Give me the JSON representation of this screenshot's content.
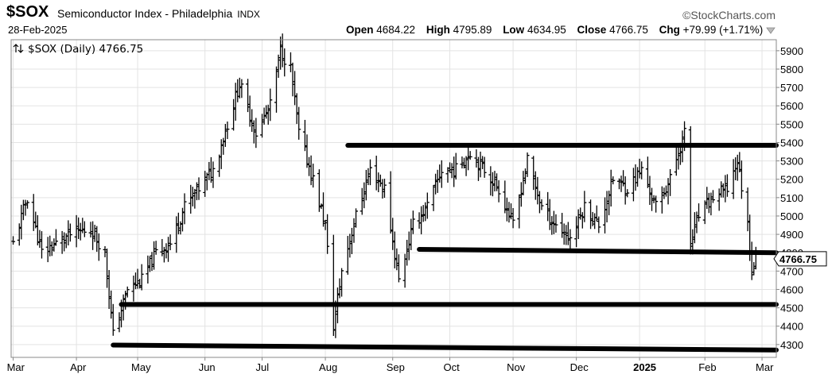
{
  "header": {
    "symbol": "$SOX",
    "name": "Semiconductor Index - Philadelphia",
    "exchange": "INDX",
    "credit": "©StockCharts.com",
    "date": "28-Feb-2025",
    "open_label": "Open",
    "open": "4684.22",
    "high_label": "High",
    "high": "4795.89",
    "low_label": "Low",
    "low": "4634.95",
    "close_label": "Close",
    "close": "4766.75",
    "chg_label": "Chg",
    "chg": "+79.99 (+1.71%)",
    "chg_icon": "triangle-down-icon"
  },
  "chart_data": {
    "type": "bar",
    "legend": "$SOX (Daily) 4766.75",
    "legend_icon": "up-down-arrows-icon",
    "price_marker": "4766.75",
    "ylim": [
      4230,
      5960
    ],
    "yticks": [
      "4300",
      "4400",
      "4500",
      "4600",
      "4700",
      "4800",
      "4900",
      "5000",
      "5100",
      "5200",
      "5300",
      "5400",
      "5500",
      "5600",
      "5700",
      "5800",
      "5900"
    ],
    "xlabels": [
      {
        "label": "Mar",
        "date": "2024-03-01"
      },
      {
        "label": "Apr",
        "date": "2024-04-01"
      },
      {
        "label": "May",
        "date": "2024-05-01"
      },
      {
        "label": "Jun",
        "date": "2024-06-03"
      },
      {
        "label": "Jul",
        "date": "2024-07-01"
      },
      {
        "label": "Aug",
        "date": "2024-08-01"
      },
      {
        "label": "Sep",
        "date": "2024-09-03"
      },
      {
        "label": "Oct",
        "date": "2024-10-01"
      },
      {
        "label": "Nov",
        "date": "2024-11-01"
      },
      {
        "label": "Dec",
        "date": "2024-12-02"
      },
      {
        "label": "2025",
        "date": "2025-01-02",
        "bold": true
      },
      {
        "label": "Feb",
        "date": "2025-02-03"
      },
      {
        "label": "Mar",
        "date": "2025-03-03"
      }
    ],
    "grid": true,
    "price_points": [
      {
        "date": "2024-03-01",
        "close": 4850
      },
      {
        "date": "2024-03-08",
        "close": 5100
      },
      {
        "date": "2024-03-15",
        "close": 4800
      },
      {
        "date": "2024-03-22",
        "close": 4850
      },
      {
        "date": "2024-03-29",
        "close": 4900
      },
      {
        "date": "2024-04-08",
        "close": 4930
      },
      {
        "date": "2024-04-15",
        "close": 4800
      },
      {
        "date": "2024-04-19",
        "close": 4350
      },
      {
        "date": "2024-04-26",
        "close": 4600
      },
      {
        "date": "2024-05-03",
        "close": 4650
      },
      {
        "date": "2024-05-10",
        "close": 4800
      },
      {
        "date": "2024-05-17",
        "close": 4850
      },
      {
        "date": "2024-05-24",
        "close": 5050
      },
      {
        "date": "2024-05-31",
        "close": 5150
      },
      {
        "date": "2024-06-07",
        "close": 5250
      },
      {
        "date": "2024-06-14",
        "close": 5500
      },
      {
        "date": "2024-06-20",
        "close": 5720
      },
      {
        "date": "2024-06-28",
        "close": 5450
      },
      {
        "date": "2024-07-05",
        "close": 5600
      },
      {
        "date": "2024-07-10",
        "close": 5900
      },
      {
        "date": "2024-07-15",
        "close": 5800
      },
      {
        "date": "2024-07-19",
        "close": 5450
      },
      {
        "date": "2024-07-26",
        "close": 5200
      },
      {
        "date": "2024-08-01",
        "close": 4950
      },
      {
        "date": "2024-08-05",
        "close": 4400
      },
      {
        "date": "2024-08-09",
        "close": 4700
      },
      {
        "date": "2024-08-16",
        "close": 5000
      },
      {
        "date": "2024-08-23",
        "close": 5250
      },
      {
        "date": "2024-08-30",
        "close": 5150
      },
      {
        "date": "2024-09-06",
        "close": 4650
      },
      {
        "date": "2024-09-13",
        "close": 4950
      },
      {
        "date": "2024-09-20",
        "close": 5050
      },
      {
        "date": "2024-09-27",
        "close": 5250
      },
      {
        "date": "2024-10-04",
        "close": 5250
      },
      {
        "date": "2024-10-11",
        "close": 5350
      },
      {
        "date": "2024-10-18",
        "close": 5250
      },
      {
        "date": "2024-10-25",
        "close": 5150
      },
      {
        "date": "2024-11-01",
        "close": 4950
      },
      {
        "date": "2024-11-08",
        "close": 5300
      },
      {
        "date": "2024-11-15",
        "close": 5050
      },
      {
        "date": "2024-11-22",
        "close": 4950
      },
      {
        "date": "2024-11-29",
        "close": 4880
      },
      {
        "date": "2024-12-06",
        "close": 5050
      },
      {
        "date": "2024-12-13",
        "close": 4950
      },
      {
        "date": "2024-12-20",
        "close": 5200
      },
      {
        "date": "2024-12-27",
        "close": 5150
      },
      {
        "date": "2025-01-03",
        "close": 5250
      },
      {
        "date": "2025-01-10",
        "close": 5050
      },
      {
        "date": "2025-01-17",
        "close": 5200
      },
      {
        "date": "2025-01-24",
        "close": 5450
      },
      {
        "date": "2025-01-27",
        "close": 4850
      },
      {
        "date": "2025-01-31",
        "close": 5000
      },
      {
        "date": "2025-02-07",
        "close": 5100
      },
      {
        "date": "2025-02-14",
        "close": 5150
      },
      {
        "date": "2025-02-19",
        "close": 5300
      },
      {
        "date": "2025-02-24",
        "close": 4950
      },
      {
        "date": "2025-02-26",
        "close": 4700
      },
      {
        "date": "2025-02-28",
        "close": 4766.75
      }
    ],
    "trendlines": [
      {
        "from": {
          "date": "2024-08-12",
          "value": 5385
        },
        "to": {
          "date": "2025-03-10",
          "value": 5385
        }
      },
      {
        "from": {
          "date": "2024-09-16",
          "value": 4818
        },
        "to": {
          "date": "2025-03-10",
          "value": 4800
        }
      },
      {
        "from": {
          "date": "2024-04-23",
          "value": 4518
        },
        "to": {
          "date": "2025-03-10",
          "value": 4518
        }
      },
      {
        "from": {
          "date": "2024-04-19",
          "value": 4297
        },
        "to": {
          "date": "2025-03-10",
          "value": 4270
        }
      }
    ]
  }
}
